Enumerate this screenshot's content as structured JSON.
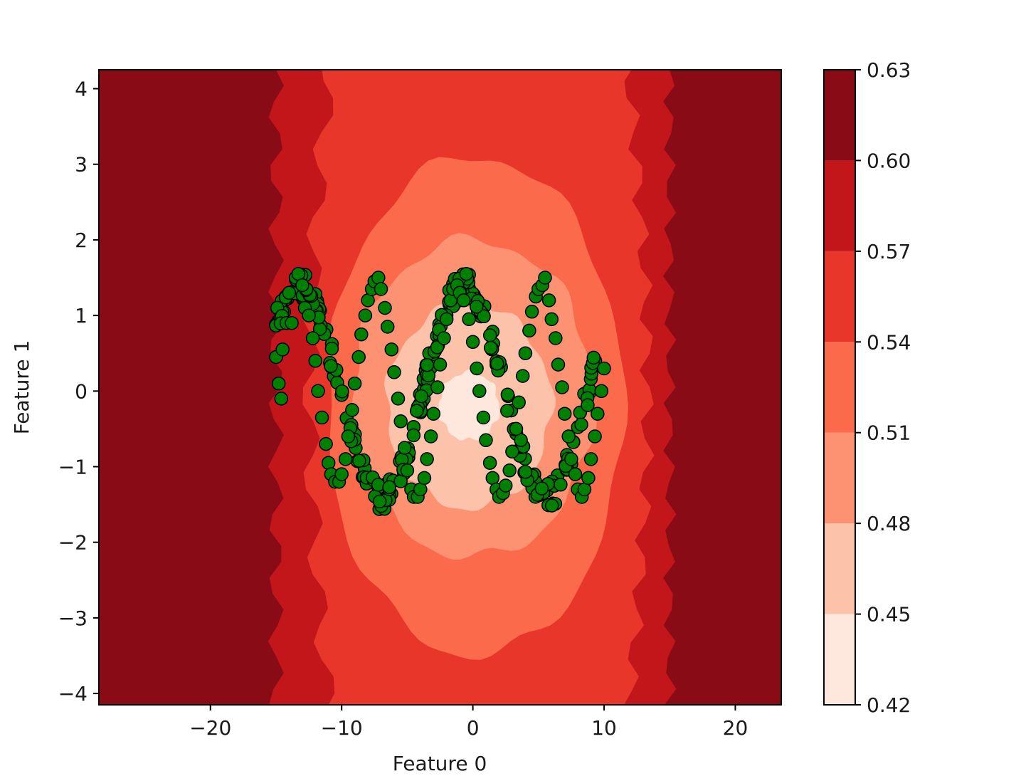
{
  "chart_data": {
    "type": "scatter",
    "subtype": "filled-contour-with-scatter",
    "title": "",
    "xlabel": "Feature 0",
    "ylabel": "Feature 1",
    "xlim": [
      -28.5,
      23.5
    ],
    "ylim": [
      -4.15,
      4.25
    ],
    "xticks": [
      -20,
      -10,
      0,
      10,
      20
    ],
    "xtick_labels": [
      "−20",
      "−10",
      "0",
      "10",
      "20"
    ],
    "yticks": [
      -4,
      -3,
      -2,
      -1,
      0,
      1,
      2,
      3,
      4
    ],
    "ytick_labels": [
      "−4",
      "−3",
      "−2",
      "−1",
      "0",
      "1",
      "2",
      "3",
      "4"
    ],
    "grid": false,
    "colormap": "Reds",
    "colorbar": {
      "levels": [
        0.42,
        0.45,
        0.48,
        0.51,
        0.54,
        0.57,
        0.6,
        0.63
      ],
      "tick_labels": [
        "0.42",
        "0.45",
        "0.48",
        "0.51",
        "0.54",
        "0.57",
        "0.60",
        "0.63"
      ],
      "colors": [
        "#fee8dd",
        "#fcc2aa",
        "#fc9272",
        "#fb6a4a",
        "#e8372a",
        "#c2161b",
        "#890b16"
      ]
    },
    "contour_regions": [
      {
        "level_range": [
          0.6,
          0.63
        ],
        "description": "outer band, x < -15 and x > 15"
      },
      {
        "level_range": [
          0.57,
          0.6
        ],
        "x_extent": [
          -15,
          15
        ]
      },
      {
        "level_range": [
          0.54,
          0.57
        ],
        "x_extent": [
          -12.5,
          12.5
        ]
      },
      {
        "level_range": [
          0.51,
          0.54
        ],
        "x_extent": [
          -11,
          11.5
        ],
        "y_extent": [
          -3.5,
          3.1
        ]
      },
      {
        "level_range": [
          0.48,
          0.51
        ],
        "x_extent": [
          -9,
          9
        ],
        "y_extent": [
          -2.0,
          2.0
        ]
      },
      {
        "level_range": [
          0.45,
          0.48
        ],
        "x_extent": [
          -6,
          6
        ],
        "y_extent": [
          -1.5,
          1.1
        ]
      },
      {
        "level_range": [
          0.42,
          0.45
        ],
        "x_extent": [
          -2,
          1.5
        ],
        "y_extent": [
          -0.6,
          0.3
        ]
      }
    ],
    "scatter": {
      "marker_color": "#008000",
      "edge_color": "#000000",
      "description": "points along a sine wave y = 1.4*sin(0.5*x + 1.9) for x in [-15, 10]",
      "curve": {
        "amplitude": 1.4,
        "frequency": 0.5,
        "phase": 1.9,
        "x_range": [
          -15,
          10
        ]
      },
      "points": [
        [
          -15.0,
          0.45
        ],
        [
          -14.8,
          0.1
        ],
        [
          -14.6,
          -0.1
        ],
        [
          -14.5,
          0.55
        ],
        [
          -14.2,
          0.9
        ],
        [
          -14.0,
          1.3
        ],
        [
          -13.8,
          0.9
        ],
        [
          -13.5,
          1.5
        ],
        [
          -13.3,
          1.55
        ],
        [
          -13.0,
          1.4
        ],
        [
          -12.8,
          1.1
        ],
        [
          -12.5,
          1.0
        ],
        [
          -12.2,
          0.7
        ],
        [
          -12.0,
          0.4
        ],
        [
          -11.8,
          0.0
        ],
        [
          -11.5,
          -0.35
        ],
        [
          -11.2,
          -0.7
        ],
        [
          -11.0,
          -0.95
        ],
        [
          -10.8,
          -1.1
        ],
        [
          -10.5,
          -1.2
        ],
        [
          -10.2,
          -1.2
        ],
        [
          -10.0,
          -1.1
        ],
        [
          -9.7,
          -0.9
        ],
        [
          -9.5,
          -0.6
        ],
        [
          -9.2,
          -0.25
        ],
        [
          -9.0,
          0.1
        ],
        [
          -8.7,
          0.45
        ],
        [
          -8.5,
          0.75
        ],
        [
          -8.2,
          1.0
        ],
        [
          -8.0,
          1.2
        ],
        [
          -7.7,
          1.35
        ],
        [
          -7.5,
          1.45
        ],
        [
          -7.2,
          1.5
        ],
        [
          -7.0,
          1.35
        ],
        [
          -6.7,
          1.1
        ],
        [
          -6.5,
          0.85
        ],
        [
          -6.2,
          0.55
        ],
        [
          -6.0,
          0.25
        ],
        [
          -5.7,
          -0.1
        ],
        [
          -5.5,
          -0.4
        ],
        [
          -5.2,
          -0.75
        ],
        [
          -5.0,
          -1.05
        ],
        [
          -4.7,
          -1.3
        ],
        [
          -4.5,
          -1.4
        ],
        [
          -4.2,
          -1.4
        ],
        [
          -4.0,
          -1.3
        ],
        [
          -3.7,
          -1.15
        ],
        [
          -3.5,
          -0.9
        ],
        [
          -3.2,
          -0.6
        ],
        [
          -3.0,
          -0.3
        ],
        [
          -2.7,
          0.05
        ],
        [
          -2.5,
          0.35
        ],
        [
          -2.2,
          0.7
        ],
        [
          -2.0,
          0.95
        ],
        [
          -1.7,
          1.2
        ],
        [
          -1.5,
          1.35
        ],
        [
          -1.2,
          1.4
        ],
        [
          -1.0,
          1.3
        ],
        [
          -0.7,
          1.2
        ],
        [
          -0.5,
          1.55
        ],
        [
          -0.3,
          0.95
        ],
        [
          0.0,
          0.65
        ],
        [
          0.3,
          0.3
        ],
        [
          0.5,
          0.0
        ],
        [
          0.8,
          -0.35
        ],
        [
          1.0,
          -0.65
        ],
        [
          1.3,
          -0.95
        ],
        [
          1.5,
          -1.15
        ],
        [
          1.8,
          -1.3
        ],
        [
          2.0,
          -1.4
        ],
        [
          2.3,
          -1.35
        ],
        [
          2.5,
          -1.25
        ],
        [
          2.8,
          -1.05
        ],
        [
          3.0,
          -0.8
        ],
        [
          3.3,
          -0.5
        ],
        [
          3.5,
          -0.15
        ],
        [
          3.8,
          0.2
        ],
        [
          4.0,
          0.5
        ],
        [
          4.3,
          0.8
        ],
        [
          4.5,
          1.05
        ],
        [
          4.8,
          1.25
        ],
        [
          5.0,
          1.35
        ],
        [
          5.3,
          1.4
        ],
        [
          5.5,
          1.5
        ],
        [
          5.8,
          1.2
        ],
        [
          6.0,
          0.95
        ],
        [
          6.3,
          0.7
        ],
        [
          6.5,
          0.35
        ],
        [
          6.8,
          0.05
        ],
        [
          7.0,
          -0.3
        ],
        [
          7.3,
          -0.6
        ],
        [
          7.5,
          -0.9
        ],
        [
          7.8,
          -1.1
        ],
        [
          8.0,
          -1.3
        ],
        [
          8.3,
          -1.4
        ],
        [
          8.5,
          -1.3
        ],
        [
          8.8,
          -1.15
        ],
        [
          9.0,
          -0.9
        ],
        [
          9.3,
          -0.6
        ],
        [
          9.5,
          -0.3
        ],
        [
          9.8,
          0.0
        ],
        [
          10.0,
          0.3
        ]
      ]
    }
  }
}
